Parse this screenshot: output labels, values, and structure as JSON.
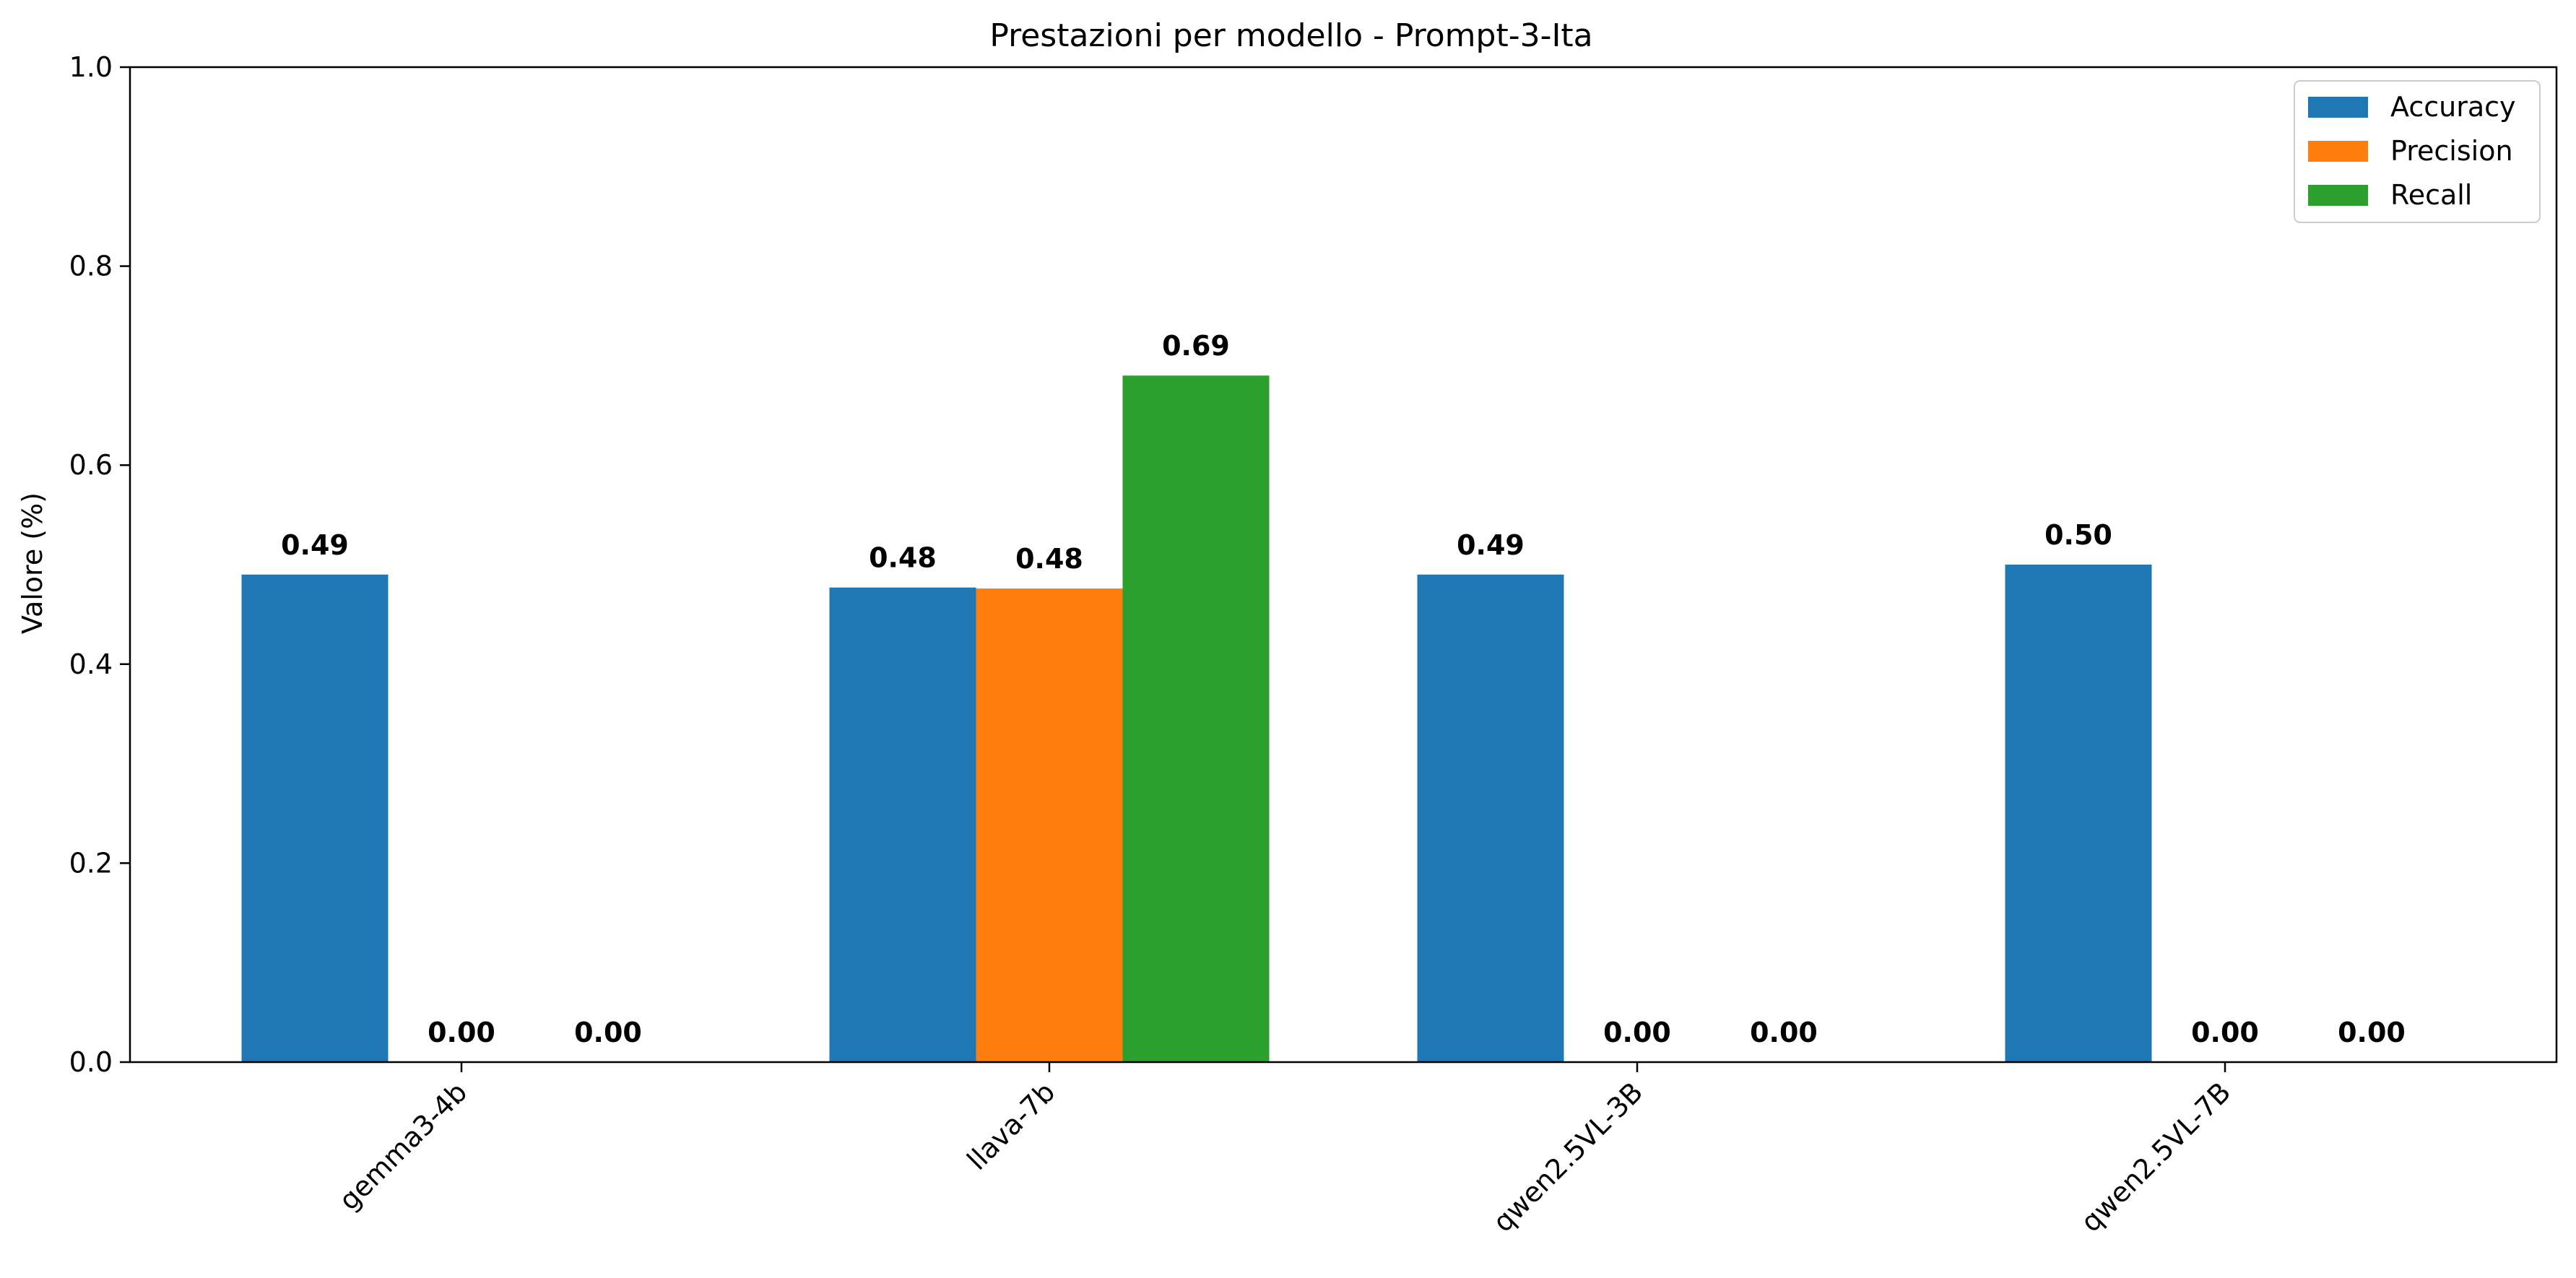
{
  "chart_data": {
    "type": "bar",
    "title": "Prestazioni per modello - Prompt-3-Ita",
    "xlabel": "",
    "ylabel": "Valore (%)",
    "ylim": [
      0,
      1
    ],
    "yticks": [
      "0.0",
      "0.2",
      "0.4",
      "0.6",
      "0.8",
      "1.0"
    ],
    "categories": [
      "gemma3-4b",
      "llava-7b",
      "qwen2.5VL-3B",
      "qwen2.5VL-7B"
    ],
    "series": [
      {
        "name": "Accuracy",
        "color": "#1f77b4",
        "values": [
          0.49,
          0.477,
          0.49,
          0.5
        ],
        "labels": [
          "0.49",
          "0.48",
          "0.49",
          "0.50"
        ]
      },
      {
        "name": "Precision",
        "color": "#ff7f0e",
        "values": [
          0.0,
          0.476,
          0.0,
          0.0
        ],
        "labels": [
          "0.00",
          "0.48",
          "0.00",
          "0.00"
        ]
      },
      {
        "name": "Recall",
        "color": "#2ca02c",
        "values": [
          0.0,
          0.69,
          0.0,
          0.0
        ],
        "labels": [
          "0.00",
          "0.69",
          "0.00",
          "0.00"
        ]
      }
    ],
    "legend": "top-right",
    "grid": false
  }
}
